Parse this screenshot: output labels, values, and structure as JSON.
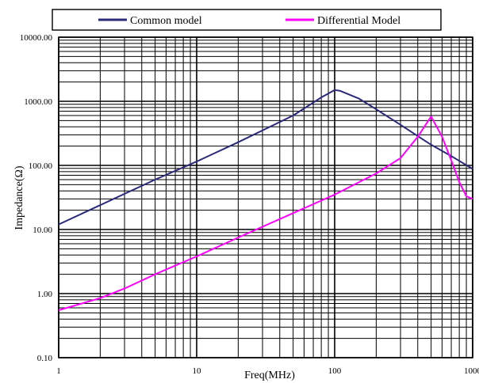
{
  "chart_data": {
    "type": "line",
    "xscale": "log",
    "yscale": "log",
    "xlim": [
      1,
      1000
    ],
    "ylim": [
      0.1,
      10000
    ],
    "xlabel": "Freq(MHz)",
    "ylabel": "Impedance(Ω)",
    "x_ticks": [
      {
        "value": 1,
        "label": "1"
      },
      {
        "value": 10,
        "label": "10"
      },
      {
        "value": 100,
        "label": "100"
      },
      {
        "value": 1000,
        "label": "1000"
      }
    ],
    "y_ticks": [
      {
        "value": 10000,
        "label": "10000.00"
      },
      {
        "value": 1000,
        "label": "1000.00"
      },
      {
        "value": 100,
        "label": "100.00"
      },
      {
        "value": 10,
        "label": "10.00"
      },
      {
        "value": 1,
        "label": "1.00"
      },
      {
        "value": 0.1,
        "label": "0.10"
      }
    ],
    "grid": true,
    "legend_position": "top",
    "series": [
      {
        "name": "Common model",
        "color": "#2b2a7a",
        "points": [
          [
            1,
            12
          ],
          [
            2,
            24
          ],
          [
            5,
            60
          ],
          [
            10,
            115
          ],
          [
            20,
            230
          ],
          [
            50,
            600
          ],
          [
            80,
            1150
          ],
          [
            100,
            1500
          ],
          [
            110,
            1450
          ],
          [
            150,
            1100
          ],
          [
            200,
            750
          ],
          [
            300,
            430
          ],
          [
            500,
            210
          ],
          [
            700,
            140
          ],
          [
            1000,
            88
          ]
        ]
      },
      {
        "name": "Differential Model",
        "color": "#ff00ff",
        "points": [
          [
            1,
            0.55
          ],
          [
            2,
            0.85
          ],
          [
            3,
            1.2
          ],
          [
            5,
            2.0
          ],
          [
            10,
            3.8
          ],
          [
            20,
            7.5
          ],
          [
            50,
            18
          ],
          [
            100,
            35
          ],
          [
            200,
            75
          ],
          [
            300,
            130
          ],
          [
            400,
            280
          ],
          [
            500,
            580
          ],
          [
            600,
            280
          ],
          [
            700,
            120
          ],
          [
            800,
            55
          ],
          [
            900,
            33
          ],
          [
            1000,
            30
          ]
        ]
      }
    ]
  }
}
